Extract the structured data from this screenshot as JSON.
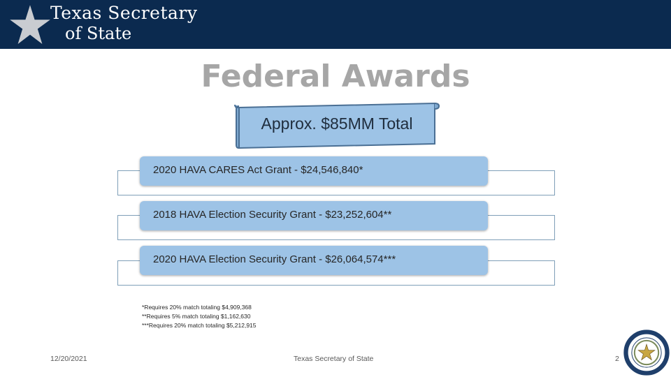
{
  "header": {
    "logo_line1": "Texas Secretary",
    "logo_line2": "of State",
    "colors": {
      "banner": "#0b2a4f",
      "star": "#c9ccd1"
    }
  },
  "slide": {
    "title": "Federal Awards",
    "callout": "Approx. $85MM Total",
    "awards": [
      {
        "label": "2020 HAVA CARES Act Grant - $24,546,840*"
      },
      {
        "label": "2018 HAVA Election Security Grant - $23,252,604**"
      },
      {
        "label": "2020 HAVA Election Security Grant - $26,064,574***"
      }
    ],
    "notes": [
      "*Requires 20% match totaling $4,909,368",
      "**Requires 5% match totaling $1,162,630",
      "***Requires 20% match totaling $5,212,915"
    ]
  },
  "footer": {
    "date": "12/20/2021",
    "org": "Texas Secretary of State",
    "page": "2"
  },
  "colors": {
    "title": "#a6a6a6",
    "pill": "#9dc3e6",
    "scroll": "#9dc3e6"
  }
}
